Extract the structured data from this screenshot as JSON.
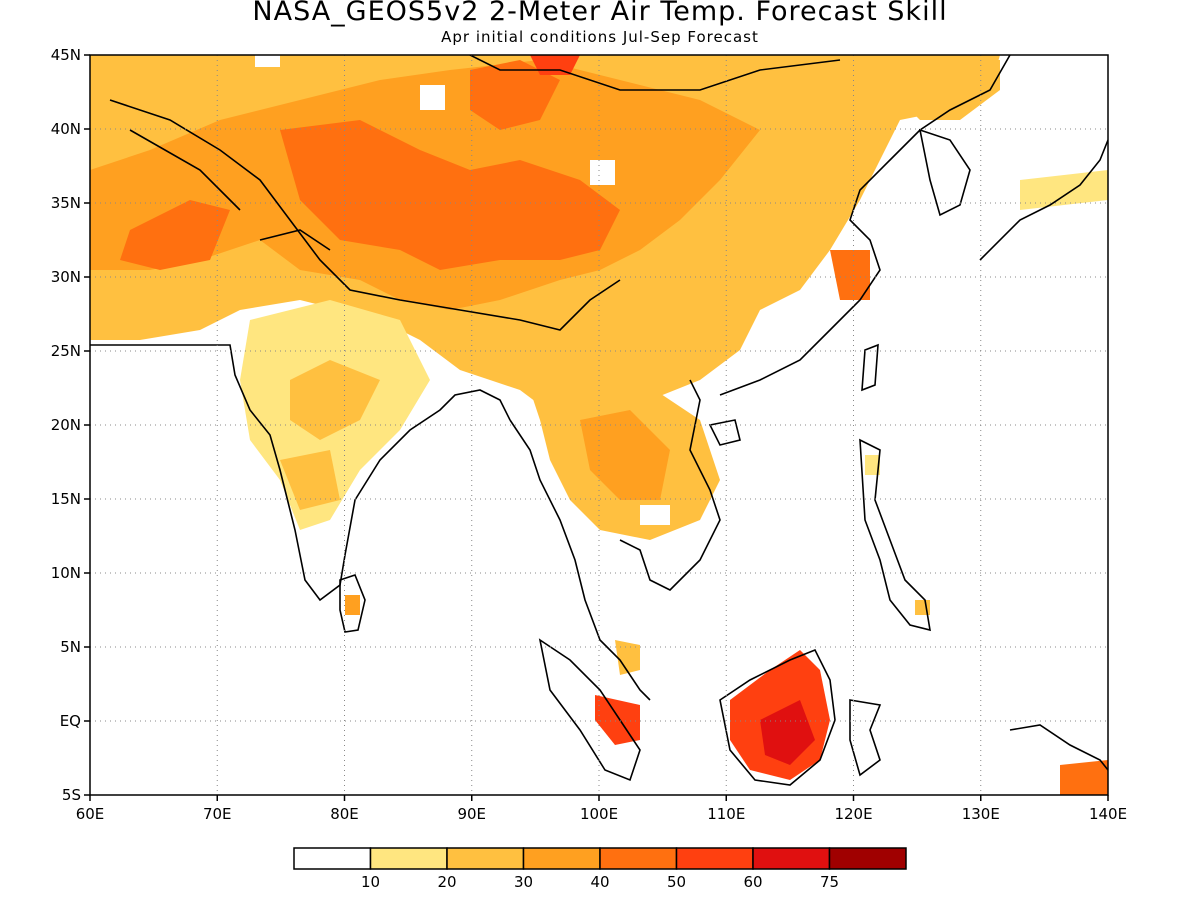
{
  "title": "NASA_GEOS5v2 2-Meter Air Temp. Forecast Skill",
  "subtitle": "Apr initial conditions  Jul-Sep Forecast",
  "map": {
    "lon_range": [
      60,
      140
    ],
    "lat_range": [
      -5,
      45
    ],
    "lat_labels": [
      "45N",
      "40N",
      "35N",
      "30N",
      "25N",
      "20N",
      "15N",
      "10N",
      "5N",
      "EQ",
      "5S"
    ],
    "lon_labels": [
      "60E",
      "70E",
      "80E",
      "90E",
      "100E",
      "110E",
      "120E",
      "130E",
      "140E"
    ],
    "grid": "dotted"
  },
  "legend": {
    "colors": [
      "#ffffff",
      "#ffe680",
      "#ffc040",
      "#ffa020",
      "#ff7010",
      "#ff4010",
      "#e01010",
      "#a00000"
    ],
    "labels": [
      "10",
      "20",
      "30",
      "40",
      "50",
      "60",
      "75"
    ]
  }
}
